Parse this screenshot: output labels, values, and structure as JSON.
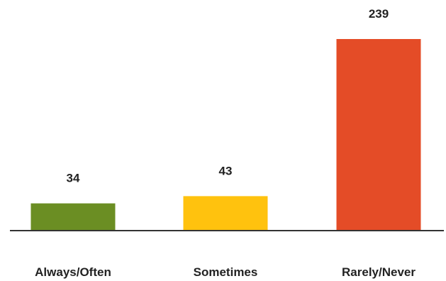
{
  "chart_data": {
    "type": "bar",
    "categories": [
      "Always/Often",
      "Sometimes",
      "Rarely/Never"
    ],
    "values": [
      34,
      43,
      239
    ],
    "colors": [
      "#6b8e23",
      "#ffc20e",
      "#e44c27"
    ],
    "ylim": [
      0,
      239
    ],
    "grid": false,
    "legend": "none",
    "axis_color": "#333333"
  }
}
